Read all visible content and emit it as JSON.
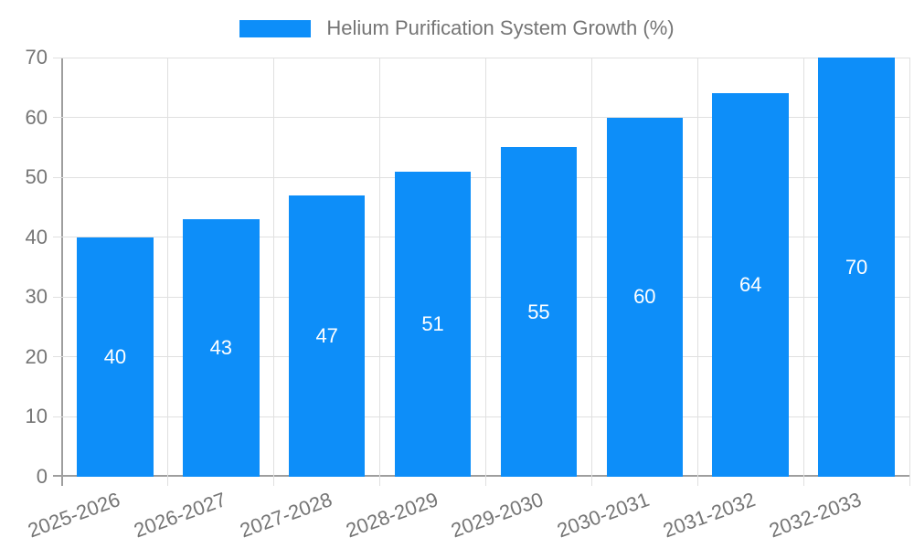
{
  "legend": {
    "label": "Helium Purification System Growth (%)"
  },
  "colors": {
    "accent": "#0d8ef9",
    "bar_label_text": "#ffffff",
    "axis_text": "#757575",
    "grid_line": "#e0e0e0",
    "axis_line": "#9e9e9e",
    "background": "#ffffff"
  },
  "chart_data": {
    "type": "bar",
    "title": "Helium Purification System Growth (%)",
    "categories": [
      "2025-2026",
      "2026-2027",
      "2027-2028",
      "2028-2029",
      "2029-2030",
      "2030-2031",
      "2031-2032",
      "2032-2033"
    ],
    "values": [
      40,
      43,
      47,
      51,
      55,
      60,
      64,
      70
    ],
    "series_name": "Helium Purification System Growth (%)",
    "xlabel": "",
    "ylabel": "",
    "ylim": [
      0,
      70
    ],
    "yticks": [
      0,
      10,
      20,
      30,
      40,
      50,
      60,
      70
    ],
    "grid": true,
    "legend_position": "top",
    "value_labels": "inside-center",
    "x_tick_rotation_deg": -20
  }
}
